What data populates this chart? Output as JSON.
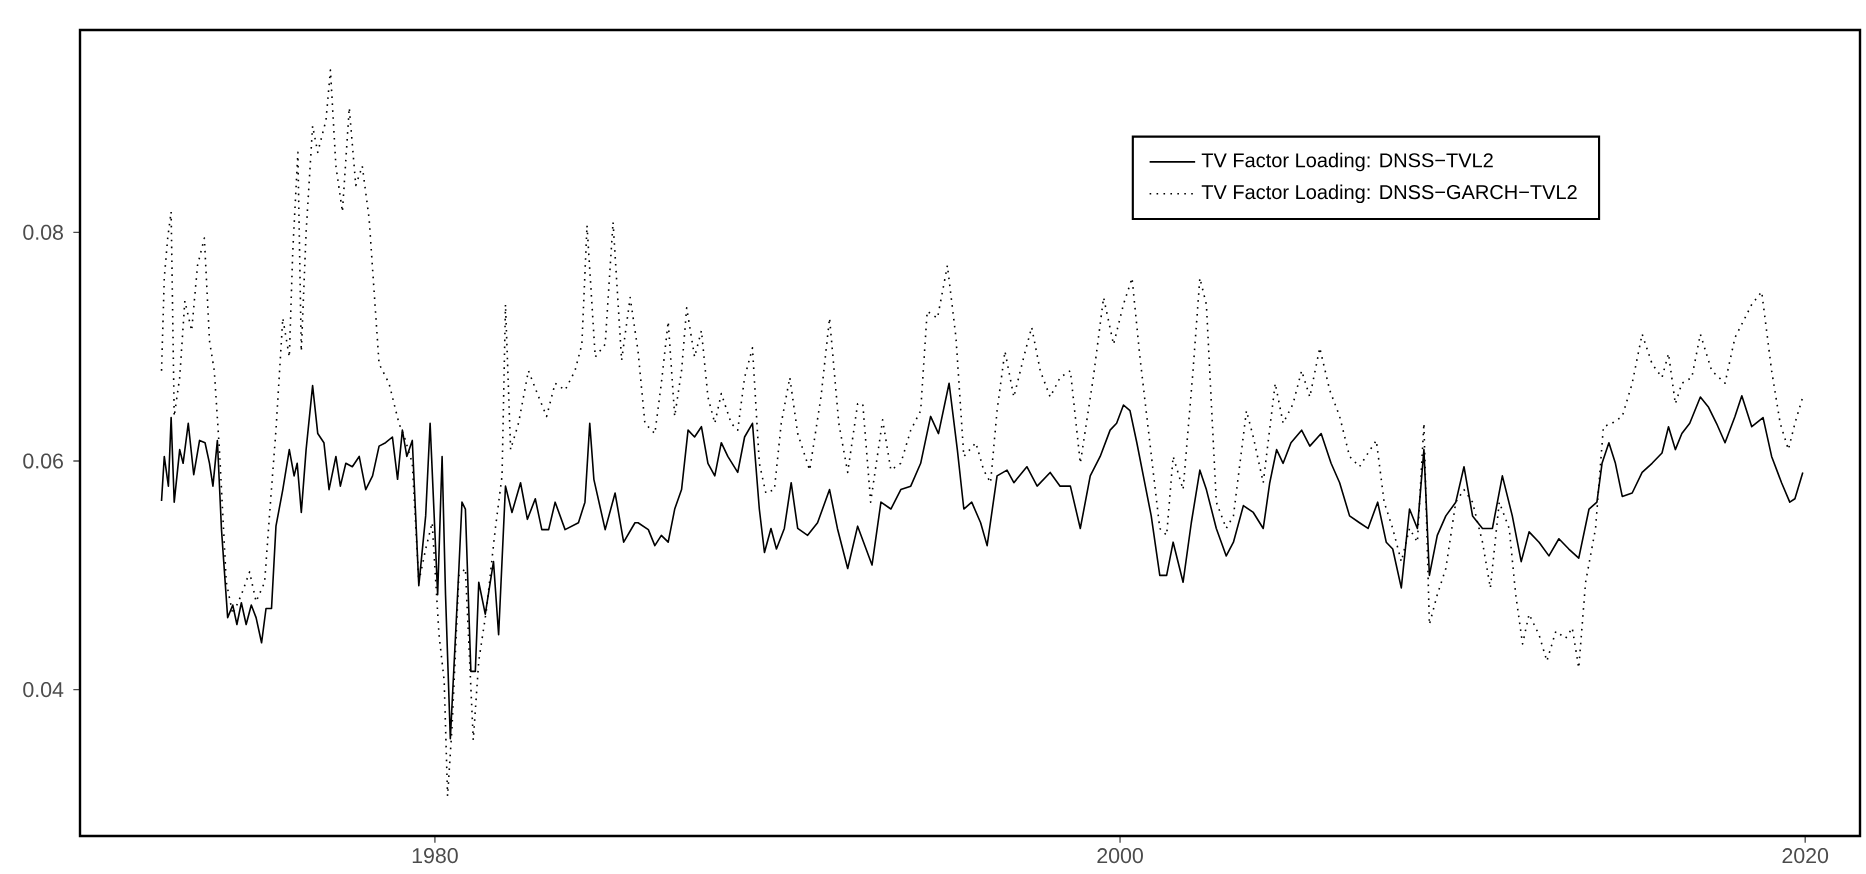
{
  "chart_data": {
    "type": "line",
    "xlim": [
      1969.64,
      2021.6
    ],
    "ylim": [
      0.0272,
      0.0977
    ],
    "xticks": [
      1980,
      2000,
      2020
    ],
    "yticks": [
      0.04,
      0.06,
      0.08
    ],
    "grid": false,
    "legend": "top right",
    "series": [
      {
        "name": "TV Factor Loading: DNSS−TVL2",
        "color": "#000000",
        "line_style": "solid",
        "x": [
          1972.02,
          1972.1,
          1972.22,
          1972.3,
          1972.39,
          1972.55,
          1972.65,
          1972.8,
          1972.96,
          1973.13,
          1973.29,
          1973.42,
          1973.52,
          1973.65,
          1973.77,
          1973.95,
          1974.1,
          1974.22,
          1974.35,
          1974.49,
          1974.64,
          1974.78,
          1974.94,
          1975.07,
          1975.23,
          1975.36,
          1975.56,
          1975.75,
          1975.89,
          1975.98,
          1976.1,
          1976.24,
          1976.43,
          1976.58,
          1976.76,
          1976.91,
          1977.11,
          1977.24,
          1977.4,
          1977.59,
          1977.79,
          1977.98,
          1978.18,
          1978.37,
          1978.56,
          1978.76,
          1978.91,
          1979.05,
          1979.18,
          1979.34,
          1979.53,
          1979.73,
          1979.86,
          1980.08,
          1980.21,
          1980.31,
          1980.45,
          1980.7,
          1980.79,
          1980.89,
          1981.05,
          1981.18,
          1981.28,
          1981.47,
          1981.71,
          1981.86,
          1982.06,
          1982.25,
          1982.5,
          1982.7,
          1982.93,
          1983.12,
          1983.32,
          1983.51,
          1983.8,
          1984.19,
          1984.38,
          1984.52,
          1984.64,
          1984.97,
          1985.26,
          1985.51,
          1985.84,
          1985.93,
          1986.23,
          1986.42,
          1986.61,
          1986.81,
          1987.0,
          1987.2,
          1987.39,
          1987.58,
          1987.78,
          1987.97,
          1988.17,
          1988.36,
          1988.55,
          1988.84,
          1989.04,
          1989.27,
          1989.47,
          1989.62,
          1989.81,
          1989.97,
          1990.2,
          1990.4,
          1990.59,
          1990.88,
          1991.17,
          1991.52,
          1991.75,
          1992.05,
          1992.34,
          1992.76,
          1993.02,
          1993.31,
          1993.6,
          1993.89,
          1994.18,
          1994.47,
          1994.7,
          1995.01,
          1995.25,
          1995.44,
          1995.67,
          1995.93,
          1996.12,
          1996.41,
          1996.7,
          1996.9,
          1997.28,
          1997.58,
          1997.96,
          1998.25,
          1998.55,
          1998.84,
          1999.13,
          1999.42,
          1999.71,
          1999.9,
          2000.1,
          2000.29,
          2000.49,
          2000.68,
          2000.91,
          2001.16,
          2001.36,
          2001.55,
          2001.84,
          2002.08,
          2002.33,
          2002.52,
          2002.81,
          2003.1,
          2003.31,
          2003.6,
          2003.89,
          2004.18,
          2004.37,
          2004.57,
          2004.76,
          2004.99,
          2005.3,
          2005.54,
          2005.87,
          2006.16,
          2006.41,
          2006.7,
          2006.99,
          2007.24,
          2007.52,
          2007.77,
          2007.96,
          2008.21,
          2008.45,
          2008.68,
          2008.87,
          2009.03,
          2009.26,
          2009.51,
          2009.8,
          2010.04,
          2010.29,
          2010.58,
          2010.87,
          2011.16,
          2011.45,
          2011.71,
          2011.94,
          2012.23,
          2012.52,
          2012.81,
          2013.1,
          2013.39,
          2013.69,
          2013.92,
          2014.07,
          2014.27,
          2014.46,
          2014.66,
          2014.95,
          2015.24,
          2015.53,
          2015.82,
          2016.01,
          2016.21,
          2016.4,
          2016.63,
          2016.94,
          2017.18,
          2017.41,
          2017.66,
          2017.95,
          2018.15,
          2018.44,
          2018.77,
          2019.02,
          2019.31,
          2019.55,
          2019.7,
          2019.93
        ],
        "values": [
          0.0565,
          0.0604,
          0.0578,
          0.0638,
          0.0564,
          0.061,
          0.0598,
          0.0633,
          0.0588,
          0.0618,
          0.0616,
          0.0598,
          0.0578,
          0.0618,
          0.054,
          0.0463,
          0.0474,
          0.0457,
          0.0476,
          0.0457,
          0.0474,
          0.0463,
          0.0441,
          0.0471,
          0.0471,
          0.0543,
          0.0575,
          0.061,
          0.0587,
          0.0598,
          0.0555,
          0.061,
          0.0666,
          0.0624,
          0.0616,
          0.0575,
          0.0604,
          0.0578,
          0.0598,
          0.0595,
          0.0604,
          0.0575,
          0.0587,
          0.0613,
          0.0616,
          0.0621,
          0.0584,
          0.0627,
          0.0604,
          0.0618,
          0.0491,
          0.0552,
          0.0633,
          0.0483,
          0.0604,
          0.0483,
          0.0357,
          0.0506,
          0.0564,
          0.0558,
          0.0416,
          0.0416,
          0.0494,
          0.0466,
          0.0512,
          0.0448,
          0.0578,
          0.0555,
          0.0581,
          0.0549,
          0.0567,
          0.054,
          0.054,
          0.0564,
          0.054,
          0.0546,
          0.0564,
          0.0633,
          0.0584,
          0.054,
          0.0572,
          0.0529,
          0.0546,
          0.0546,
          0.054,
          0.0526,
          0.0535,
          0.0529,
          0.0558,
          0.0575,
          0.0627,
          0.0621,
          0.063,
          0.0598,
          0.0587,
          0.0616,
          0.0604,
          0.059,
          0.0621,
          0.0633,
          0.0558,
          0.052,
          0.0541,
          0.0523,
          0.0541,
          0.0581,
          0.0541,
          0.0535,
          0.0546,
          0.0575,
          0.0541,
          0.0506,
          0.0543,
          0.0509,
          0.0564,
          0.0558,
          0.0575,
          0.0578,
          0.0598,
          0.0639,
          0.0624,
          0.0668,
          0.061,
          0.0558,
          0.0564,
          0.0546,
          0.0526,
          0.0587,
          0.0592,
          0.0581,
          0.0595,
          0.0578,
          0.059,
          0.0578,
          0.0578,
          0.0541,
          0.0587,
          0.0604,
          0.0627,
          0.0633,
          0.0649,
          0.0644,
          0.0616,
          0.0587,
          0.0552,
          0.05,
          0.05,
          0.0529,
          0.0494,
          0.0546,
          0.0592,
          0.0575,
          0.0541,
          0.0517,
          0.0529,
          0.0561,
          0.0555,
          0.0541,
          0.0581,
          0.061,
          0.0598,
          0.0616,
          0.0627,
          0.0613,
          0.0624,
          0.0598,
          0.0581,
          0.0552,
          0.0546,
          0.0541,
          0.0564,
          0.0529,
          0.0523,
          0.0489,
          0.0558,
          0.0541,
          0.061,
          0.05,
          0.0535,
          0.0552,
          0.0564,
          0.0595,
          0.0552,
          0.0541,
          0.0541,
          0.0587,
          0.0552,
          0.0512,
          0.0538,
          0.0529,
          0.0517,
          0.0532,
          0.0523,
          0.0515,
          0.0558,
          0.0564,
          0.0598,
          0.0616,
          0.0598,
          0.0569,
          0.0572,
          0.059,
          0.0598,
          0.0607,
          0.063,
          0.061,
          0.0624,
          0.0633,
          0.0656,
          0.0647,
          0.0633,
          0.0616,
          0.0639,
          0.0657,
          0.063,
          0.0638,
          0.0604,
          0.0581,
          0.0564,
          0.0567,
          0.059
        ]
      },
      {
        "name": "TV Factor Loading: DNSS−GARCH−TVL2",
        "color": "#000000",
        "line_style": "dotted",
        "x": [
          1972.02,
          1972.1,
          1972.2,
          1972.3,
          1972.39,
          1972.55,
          1972.7,
          1972.9,
          1973.07,
          1973.27,
          1973.42,
          1973.56,
          1973.71,
          1973.91,
          1974.1,
          1974.35,
          1974.59,
          1974.78,
          1975.03,
          1975.17,
          1975.36,
          1975.56,
          1975.75,
          1975.85,
          1976.0,
          1976.1,
          1976.24,
          1976.43,
          1976.58,
          1976.82,
          1976.95,
          1977.11,
          1977.3,
          1977.5,
          1977.69,
          1977.88,
          1978.08,
          1978.37,
          1978.66,
          1978.95,
          1979.11,
          1979.34,
          1979.53,
          1979.73,
          1979.92,
          1980.12,
          1980.27,
          1980.37,
          1980.5,
          1980.7,
          1980.89,
          1981.12,
          1981.28,
          1981.51,
          1981.76,
          1981.96,
          1982.06,
          1982.21,
          1982.44,
          1982.73,
          1983.03,
          1983.26,
          1983.51,
          1983.8,
          1984.09,
          1984.29,
          1984.44,
          1984.68,
          1984.97,
          1985.2,
          1985.45,
          1985.7,
          1985.93,
          1986.13,
          1986.42,
          1986.61,
          1986.81,
          1987.0,
          1987.2,
          1987.35,
          1987.58,
          1987.78,
          1987.97,
          1988.17,
          1988.36,
          1988.65,
          1988.84,
          1989.04,
          1989.27,
          1989.47,
          1989.66,
          1989.91,
          1990.11,
          1990.36,
          1990.59,
          1990.94,
          1991.27,
          1991.52,
          1991.79,
          1992.05,
          1992.34,
          1992.49,
          1992.72,
          1993.07,
          1993.31,
          1993.6,
          1993.89,
          1994.18,
          1994.37,
          1994.67,
          1994.96,
          1995.21,
          1995.44,
          1995.79,
          1996.02,
          1996.22,
          1996.41,
          1996.64,
          1996.9,
          1997.19,
          1997.42,
          1997.67,
          1997.96,
          1998.25,
          1998.55,
          1998.84,
          1999.22,
          1999.52,
          1999.81,
          2000.1,
          2000.35,
          2000.58,
          2000.87,
          2001.16,
          2001.36,
          2001.55,
          2001.84,
          2002.13,
          2002.33,
          2002.52,
          2002.81,
          2003.1,
          2003.31,
          2003.69,
          2003.89,
          2004.18,
          2004.53,
          2004.76,
          2005.05,
          2005.3,
          2005.54,
          2005.83,
          2006.12,
          2006.41,
          2006.7,
          2006.99,
          2007.24,
          2007.48,
          2007.71,
          2007.96,
          2008.21,
          2008.45,
          2008.68,
          2008.87,
          2009.03,
          2009.26,
          2009.51,
          2009.8,
          2010.04,
          2010.29,
          2010.58,
          2010.81,
          2011.07,
          2011.36,
          2011.55,
          2011.75,
          2011.94,
          2012.23,
          2012.46,
          2012.72,
          2013.01,
          2013.2,
          2013.39,
          2013.59,
          2013.88,
          2014.11,
          2014.36,
          2014.66,
          2014.95,
          2015.24,
          2015.53,
          2015.82,
          2016.01,
          2016.21,
          2016.4,
          2016.69,
          2016.94,
          2017.27,
          2017.66,
          2017.95,
          2018.24,
          2018.44,
          2018.73,
          2019.02,
          2019.27,
          2019.51,
          2019.7,
          2019.93
        ],
        "values": [
          0.0679,
          0.076,
          0.0795,
          0.0818,
          0.0639,
          0.0673,
          0.074,
          0.0714,
          0.0771,
          0.0795,
          0.0705,
          0.0679,
          0.061,
          0.0494,
          0.0466,
          0.0483,
          0.0503,
          0.0477,
          0.0494,
          0.0552,
          0.0627,
          0.0725,
          0.0691,
          0.0783,
          0.087,
          0.0696,
          0.08,
          0.0893,
          0.087,
          0.0898,
          0.0942,
          0.0858,
          0.0818,
          0.0909,
          0.0841,
          0.0858,
          0.0812,
          0.0685,
          0.0668,
          0.0633,
          0.0621,
          0.0598,
          0.0494,
          0.0523,
          0.0546,
          0.0448,
          0.0408,
          0.0307,
          0.0367,
          0.05,
          0.0506,
          0.0356,
          0.0425,
          0.0471,
          0.054,
          0.0587,
          0.0737,
          0.061,
          0.0633,
          0.0679,
          0.0656,
          0.0639,
          0.0668,
          0.0662,
          0.0679,
          0.0702,
          0.0806,
          0.0691,
          0.0702,
          0.0809,
          0.0688,
          0.0743,
          0.0696,
          0.0633,
          0.0624,
          0.0668,
          0.0722,
          0.0639,
          0.0679,
          0.0734,
          0.0691,
          0.0714,
          0.0656,
          0.0633,
          0.0659,
          0.0633,
          0.0627,
          0.0673,
          0.0699,
          0.0598,
          0.0572,
          0.0575,
          0.0633,
          0.0673,
          0.0624,
          0.0592,
          0.0656,
          0.0725,
          0.0633,
          0.059,
          0.065,
          0.065,
          0.0564,
          0.0636,
          0.0592,
          0.0598,
          0.0627,
          0.0644,
          0.0731,
          0.0725,
          0.0771,
          0.0708,
          0.0604,
          0.0616,
          0.0592,
          0.0581,
          0.0644,
          0.0696,
          0.0656,
          0.0691,
          0.0717,
          0.0679,
          0.0656,
          0.0673,
          0.0679,
          0.0598,
          0.0673,
          0.0743,
          0.0702,
          0.0737,
          0.076,
          0.0691,
          0.0616,
          0.0541,
          0.0535,
          0.0604,
          0.0575,
          0.0679,
          0.076,
          0.0737,
          0.0564,
          0.0541,
          0.0552,
          0.0644,
          0.0621,
          0.0581,
          0.0668,
          0.0633,
          0.065,
          0.0679,
          0.0656,
          0.0699,
          0.0662,
          0.0639,
          0.0604,
          0.0595,
          0.0607,
          0.0618,
          0.0564,
          0.0541,
          0.0512,
          0.0541,
          0.0529,
          0.0633,
          0.0457,
          0.0483,
          0.0506,
          0.0564,
          0.0575,
          0.0564,
          0.0529,
          0.0489,
          0.0564,
          0.0541,
          0.0483,
          0.044,
          0.0466,
          0.0448,
          0.0425,
          0.0451,
          0.0445,
          0.0454,
          0.0419,
          0.0494,
          0.0541,
          0.063,
          0.0633,
          0.0639,
          0.0668,
          0.0711,
          0.0685,
          0.0673,
          0.0694,
          0.065,
          0.0668,
          0.0673,
          0.0711,
          0.0679,
          0.0668,
          0.0708,
          0.0725,
          0.0737,
          0.0748,
          0.0679,
          0.0633,
          0.061,
          0.0633,
          0.0656
        ]
      }
    ]
  }
}
